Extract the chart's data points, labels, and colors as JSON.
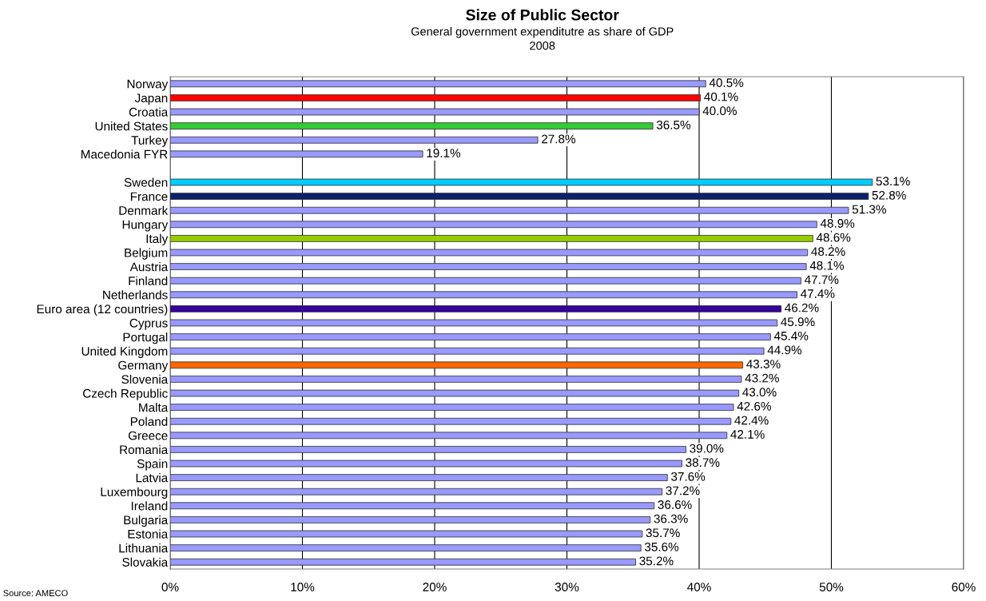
{
  "chart_data": {
    "type": "bar",
    "orientation": "horizontal",
    "title": "Size of Public Sector",
    "subtitle": "General government expenditutre as share of GDP\n2008",
    "categories": [
      "Norway",
      "Japan",
      "Croatia",
      "United States",
      "Turkey",
      "Macedonia FYR",
      null,
      "Sweden",
      "France",
      "Denmark",
      "Hungary",
      "Italy",
      "Belgium",
      "Austria",
      "Finland",
      "Netherlands",
      "Euro area (12 countries)",
      "Cyprus",
      "Portugal",
      "United Kingdom",
      "Germany",
      "Slovenia",
      "Czech Republic",
      "Malta",
      "Poland",
      "Greece",
      "Romania",
      "Spain",
      "Latvia",
      "Luxembourg",
      "Ireland",
      "Bulgaria",
      "Estonia",
      "Lithuania",
      "Slovakia"
    ],
    "values": [
      40.5,
      40.1,
      40.0,
      36.5,
      27.8,
      19.1,
      null,
      53.1,
      52.8,
      51.3,
      48.9,
      48.6,
      48.2,
      48.1,
      47.7,
      47.4,
      46.2,
      45.9,
      45.4,
      44.9,
      43.3,
      43.2,
      43.0,
      42.6,
      42.4,
      42.1,
      39.0,
      38.7,
      37.6,
      37.2,
      36.6,
      36.3,
      35.7,
      35.6,
      35.2
    ],
    "value_labels": [
      "40.5%",
      "40.1%",
      "40.0%",
      "36.5%",
      "27.8%",
      "19.1%",
      null,
      "53.1%",
      "52.8%",
      "51.3%",
      "48.9%",
      "48.6%",
      "48.2%",
      "48.1%",
      "47.7%",
      "47.4%",
      "46.2%",
      "45.9%",
      "45.4%",
      "44.9%",
      "43.3%",
      "43.2%",
      "43.0%",
      "42.6%",
      "42.4%",
      "42.1%",
      "39.0%",
      "38.7%",
      "37.6%",
      "37.2%",
      "36.6%",
      "36.3%",
      "35.7%",
      "35.6%",
      "35.2%"
    ],
    "colors": [
      "#9999ff",
      "#ff0000",
      "#9999ff",
      "#33cc33",
      "#9999ff",
      "#9999ff",
      "#9999ff",
      "#00ccff",
      "#0a1f6e",
      "#9999ff",
      "#9999ff",
      "#99cc00",
      "#9999ff",
      "#9999ff",
      "#9999ff",
      "#9999ff",
      "#330099",
      "#9999ff",
      "#9999ff",
      "#9999ff",
      "#ff6600",
      "#9999ff",
      "#9999ff",
      "#9999ff",
      "#9999ff",
      "#9999ff",
      "#9999ff",
      "#9999ff",
      "#9999ff",
      "#9999ff",
      "#9999ff",
      "#9999ff",
      "#9999ff",
      "#9999ff",
      "#9999ff"
    ],
    "xlim": [
      0,
      60
    ],
    "xticks": [
      {
        "value": 0,
        "label": "0%"
      },
      {
        "value": 10,
        "label": "10%"
      },
      {
        "value": 20,
        "label": "20%"
      },
      {
        "value": 30,
        "label": "30%"
      },
      {
        "value": 40,
        "label": "40%"
      },
      {
        "value": 50,
        "label": "50%"
      },
      {
        "value": 60,
        "label": "60%"
      }
    ],
    "grid": "x",
    "annotations": [
      "Source: AMECO"
    ]
  }
}
